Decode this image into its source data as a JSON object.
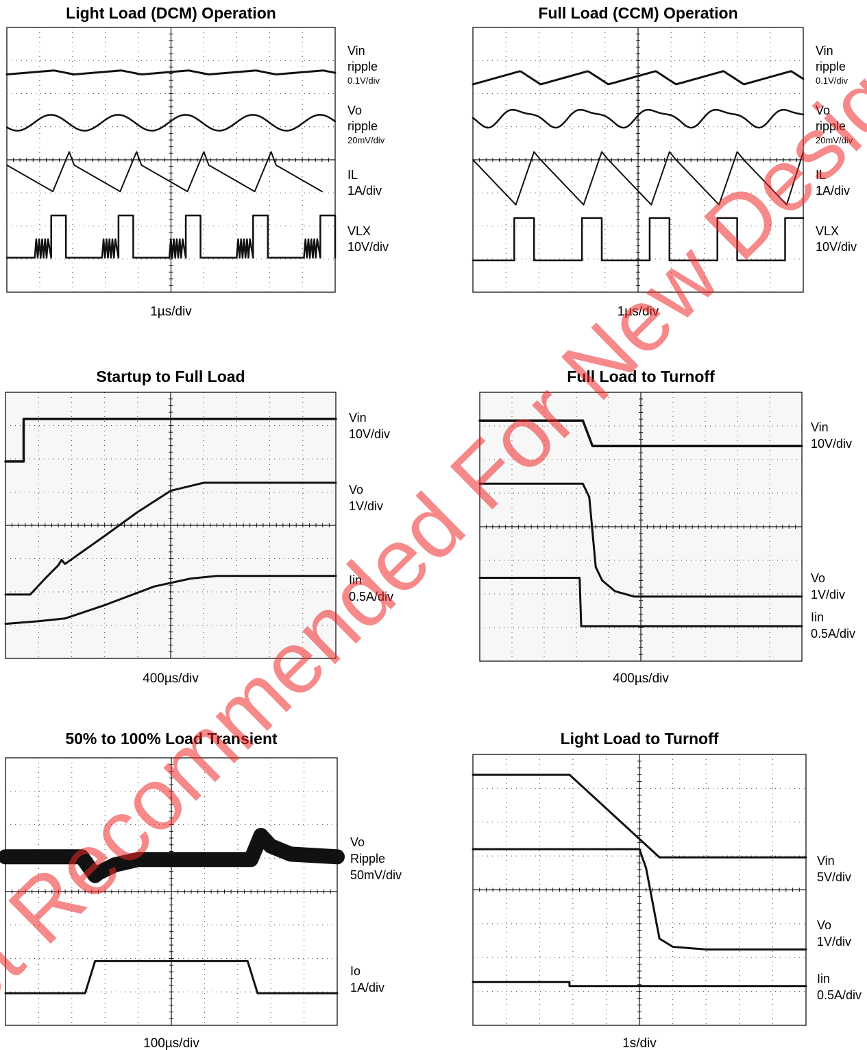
{
  "watermark": "Not Recommended For New Designs",
  "chart_data": [
    {
      "type": "line",
      "title": "Light Load (DCM) Operation",
      "xlabel": "1µs/div",
      "channels": [
        {
          "name": "Vin",
          "lines": [
            "Vin",
            "ripple",
            "0.1V/div"
          ]
        },
        {
          "name": "Vo",
          "lines": [
            "Vo",
            "ripple",
            "20mV/div"
          ]
        },
        {
          "name": "IL",
          "lines": [
            "IL",
            "1A/div"
          ]
        },
        {
          "name": "VLX",
          "lines": [
            "VLX",
            "10V/div"
          ]
        }
      ]
    },
    {
      "type": "line",
      "title": "Full Load (CCM) Operation",
      "xlabel": "1µs/div",
      "channels": [
        {
          "name": "Vin",
          "lines": [
            "Vin",
            "ripple",
            "0.1V/div"
          ]
        },
        {
          "name": "Vo",
          "lines": [
            "Vo",
            "ripple",
            "20mV/div"
          ]
        },
        {
          "name": "IL",
          "lines": [
            "IL",
            "1A/div"
          ]
        },
        {
          "name": "VLX",
          "lines": [
            "VLX",
            "10V/div"
          ]
        }
      ]
    },
    {
      "type": "line",
      "title": "Startup to Full Load",
      "xlabel": "400µs/div",
      "channels": [
        {
          "name": "Vin",
          "lines": [
            "Vin",
            "10V/div"
          ]
        },
        {
          "name": "Vo",
          "lines": [
            "Vo",
            "1V/div"
          ]
        },
        {
          "name": "Iin",
          "lines": [
            "Iin",
            "0.5A/div"
          ]
        }
      ]
    },
    {
      "type": "line",
      "title": "Full Load to Turnoff",
      "xlabel": "400µs/div",
      "channels": [
        {
          "name": "Vin",
          "lines": [
            "Vin",
            "10V/div"
          ]
        },
        {
          "name": "Vo",
          "lines": [
            "Vo",
            "1V/div"
          ]
        },
        {
          "name": "Iin",
          "lines": [
            "Iin",
            "0.5A/div"
          ]
        }
      ]
    },
    {
      "type": "line",
      "title": "50% to 100% Load Transient",
      "xlabel": "100µs/div",
      "channels": [
        {
          "name": "Vo",
          "lines": [
            "Vo",
            "Ripple",
            "50mV/div"
          ]
        },
        {
          "name": "Io",
          "lines": [
            "Io",
            "1A/div"
          ]
        }
      ]
    },
    {
      "type": "line",
      "title": "Light Load to Turnoff",
      "xlabel": "1s/div",
      "channels": [
        {
          "name": "Vin",
          "lines": [
            "Vin",
            "5V/div"
          ]
        },
        {
          "name": "Vo",
          "lines": [
            "Vo",
            "1V/div"
          ]
        },
        {
          "name": "Iin",
          "lines": [
            "Iin",
            "0.5A/div"
          ]
        }
      ]
    }
  ]
}
